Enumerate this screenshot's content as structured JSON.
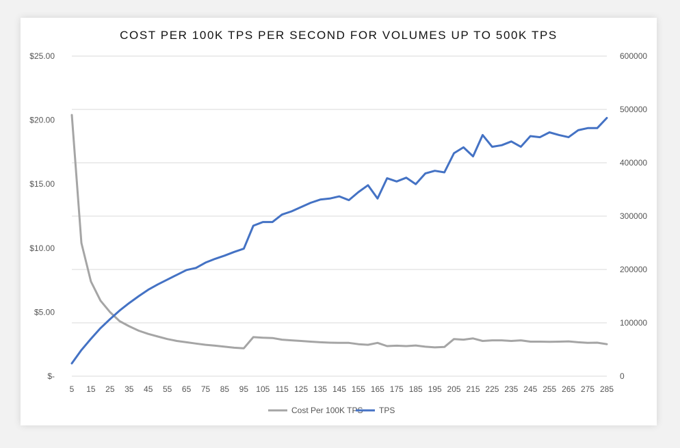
{
  "chart_data": {
    "type": "line",
    "title": "COST PER 100K TPS PER SECOND FOR VOLUMES UP TO 500K TPS",
    "x": [
      5,
      10,
      15,
      20,
      25,
      30,
      35,
      40,
      45,
      50,
      55,
      60,
      65,
      70,
      75,
      80,
      85,
      90,
      95,
      100,
      105,
      110,
      115,
      120,
      125,
      130,
      135,
      140,
      145,
      150,
      155,
      160,
      165,
      170,
      175,
      180,
      185,
      190,
      195,
      200,
      205,
      210,
      215,
      220,
      225,
      230,
      235,
      240,
      245,
      250,
      255,
      260,
      265,
      270,
      275,
      280,
      285
    ],
    "x_ticks": [
      "5",
      "15",
      "25",
      "35",
      "45",
      "55",
      "65",
      "75",
      "85",
      "95",
      "105",
      "115",
      "125",
      "135",
      "145",
      "155",
      "165",
      "175",
      "185",
      "195",
      "205",
      "215",
      "225",
      "235",
      "245",
      "255",
      "265",
      "275",
      "285"
    ],
    "y_left_ticks": [
      "$-",
      "$5.00",
      "$10.00",
      "$15.00",
      "$20.00",
      "$25.00"
    ],
    "y_left_lim": [
      0,
      25
    ],
    "y_right_ticks": [
      "0",
      "100000",
      "200000",
      "300000",
      "400000",
      "500000",
      "600000"
    ],
    "y_right_lim": [
      0,
      600000
    ],
    "series": [
      {
        "name": "Cost Per 100K TPS",
        "axis": "left",
        "color": "#a5a5a5",
        "values": [
          20.4,
          10.4,
          7.4,
          5.9,
          5.0,
          4.3,
          3.9,
          3.55,
          3.3,
          3.1,
          2.9,
          2.75,
          2.65,
          2.55,
          2.45,
          2.38,
          2.3,
          2.22,
          2.18,
          3.05,
          3.0,
          2.98,
          2.85,
          2.8,
          2.75,
          2.7,
          2.65,
          2.62,
          2.6,
          2.6,
          2.5,
          2.45,
          2.6,
          2.35,
          2.38,
          2.35,
          2.4,
          2.3,
          2.25,
          2.28,
          2.9,
          2.85,
          2.95,
          2.75,
          2.8,
          2.8,
          2.75,
          2.8,
          2.7,
          2.7,
          2.68,
          2.7,
          2.72,
          2.65,
          2.6,
          2.62,
          2.5
        ]
      },
      {
        "name": "TPS",
        "axis": "right",
        "color": "#4472c4",
        "values": [
          24000,
          49000,
          70000,
          90000,
          107000,
          123000,
          137000,
          150000,
          162000,
          172000,
          181000,
          190000,
          199000,
          203000,
          213000,
          220000,
          226000,
          233000,
          239000,
          282000,
          289000,
          289000,
          303000,
          309000,
          317000,
          325000,
          331000,
          333000,
          337000,
          330000,
          345000,
          358000,
          333000,
          371000,
          365000,
          372000,
          360000,
          380000,
          385000,
          382000,
          418000,
          429000,
          412000,
          452000,
          430000,
          433000,
          440000,
          430000,
          450000,
          448000,
          457000,
          452000,
          448000,
          461000,
          465000,
          465000,
          484000
        ]
      }
    ],
    "legend_position": "bottom",
    "grid": true
  }
}
